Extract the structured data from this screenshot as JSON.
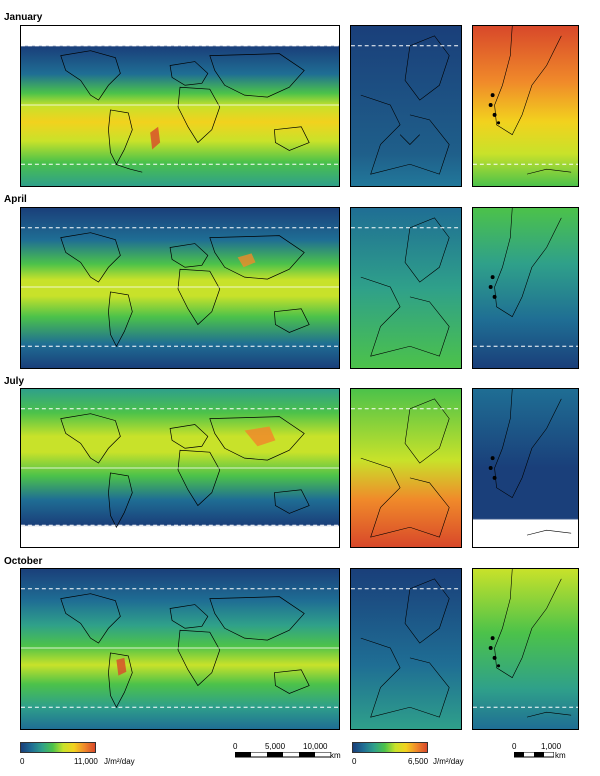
{
  "months": [
    {
      "name": "January",
      "world": "jan",
      "europe": "low",
      "chile": "high"
    },
    {
      "name": "April",
      "world": "apr",
      "europe": "mid",
      "chile": "lowmid"
    },
    {
      "name": "July",
      "world": "jul",
      "europe": "high",
      "chile": "low"
    },
    {
      "name": "October",
      "world": "oct",
      "europe": "low",
      "chile": "mid"
    }
  ],
  "legend_world": {
    "min": "0",
    "max": "11,000",
    "unit": "J/m²/day"
  },
  "legend_regional": {
    "min": "0",
    "max": "6,500",
    "unit": "J/m²/day"
  },
  "scale_world": {
    "t0": "0",
    "t1": "5,000",
    "t2": "10,000",
    "unit": "km"
  },
  "scale_regional": {
    "t0": "0",
    "t1": "1,000",
    "unit": "km"
  },
  "colors": {
    "ramp": [
      "#1a3f7a",
      "#1f6e94",
      "#2fa08a",
      "#4cc24a",
      "#c8e22a",
      "#f2d21e",
      "#f08a2a",
      "#d8482a"
    ],
    "coast": "#000000",
    "dashed": "#ffffff"
  }
}
